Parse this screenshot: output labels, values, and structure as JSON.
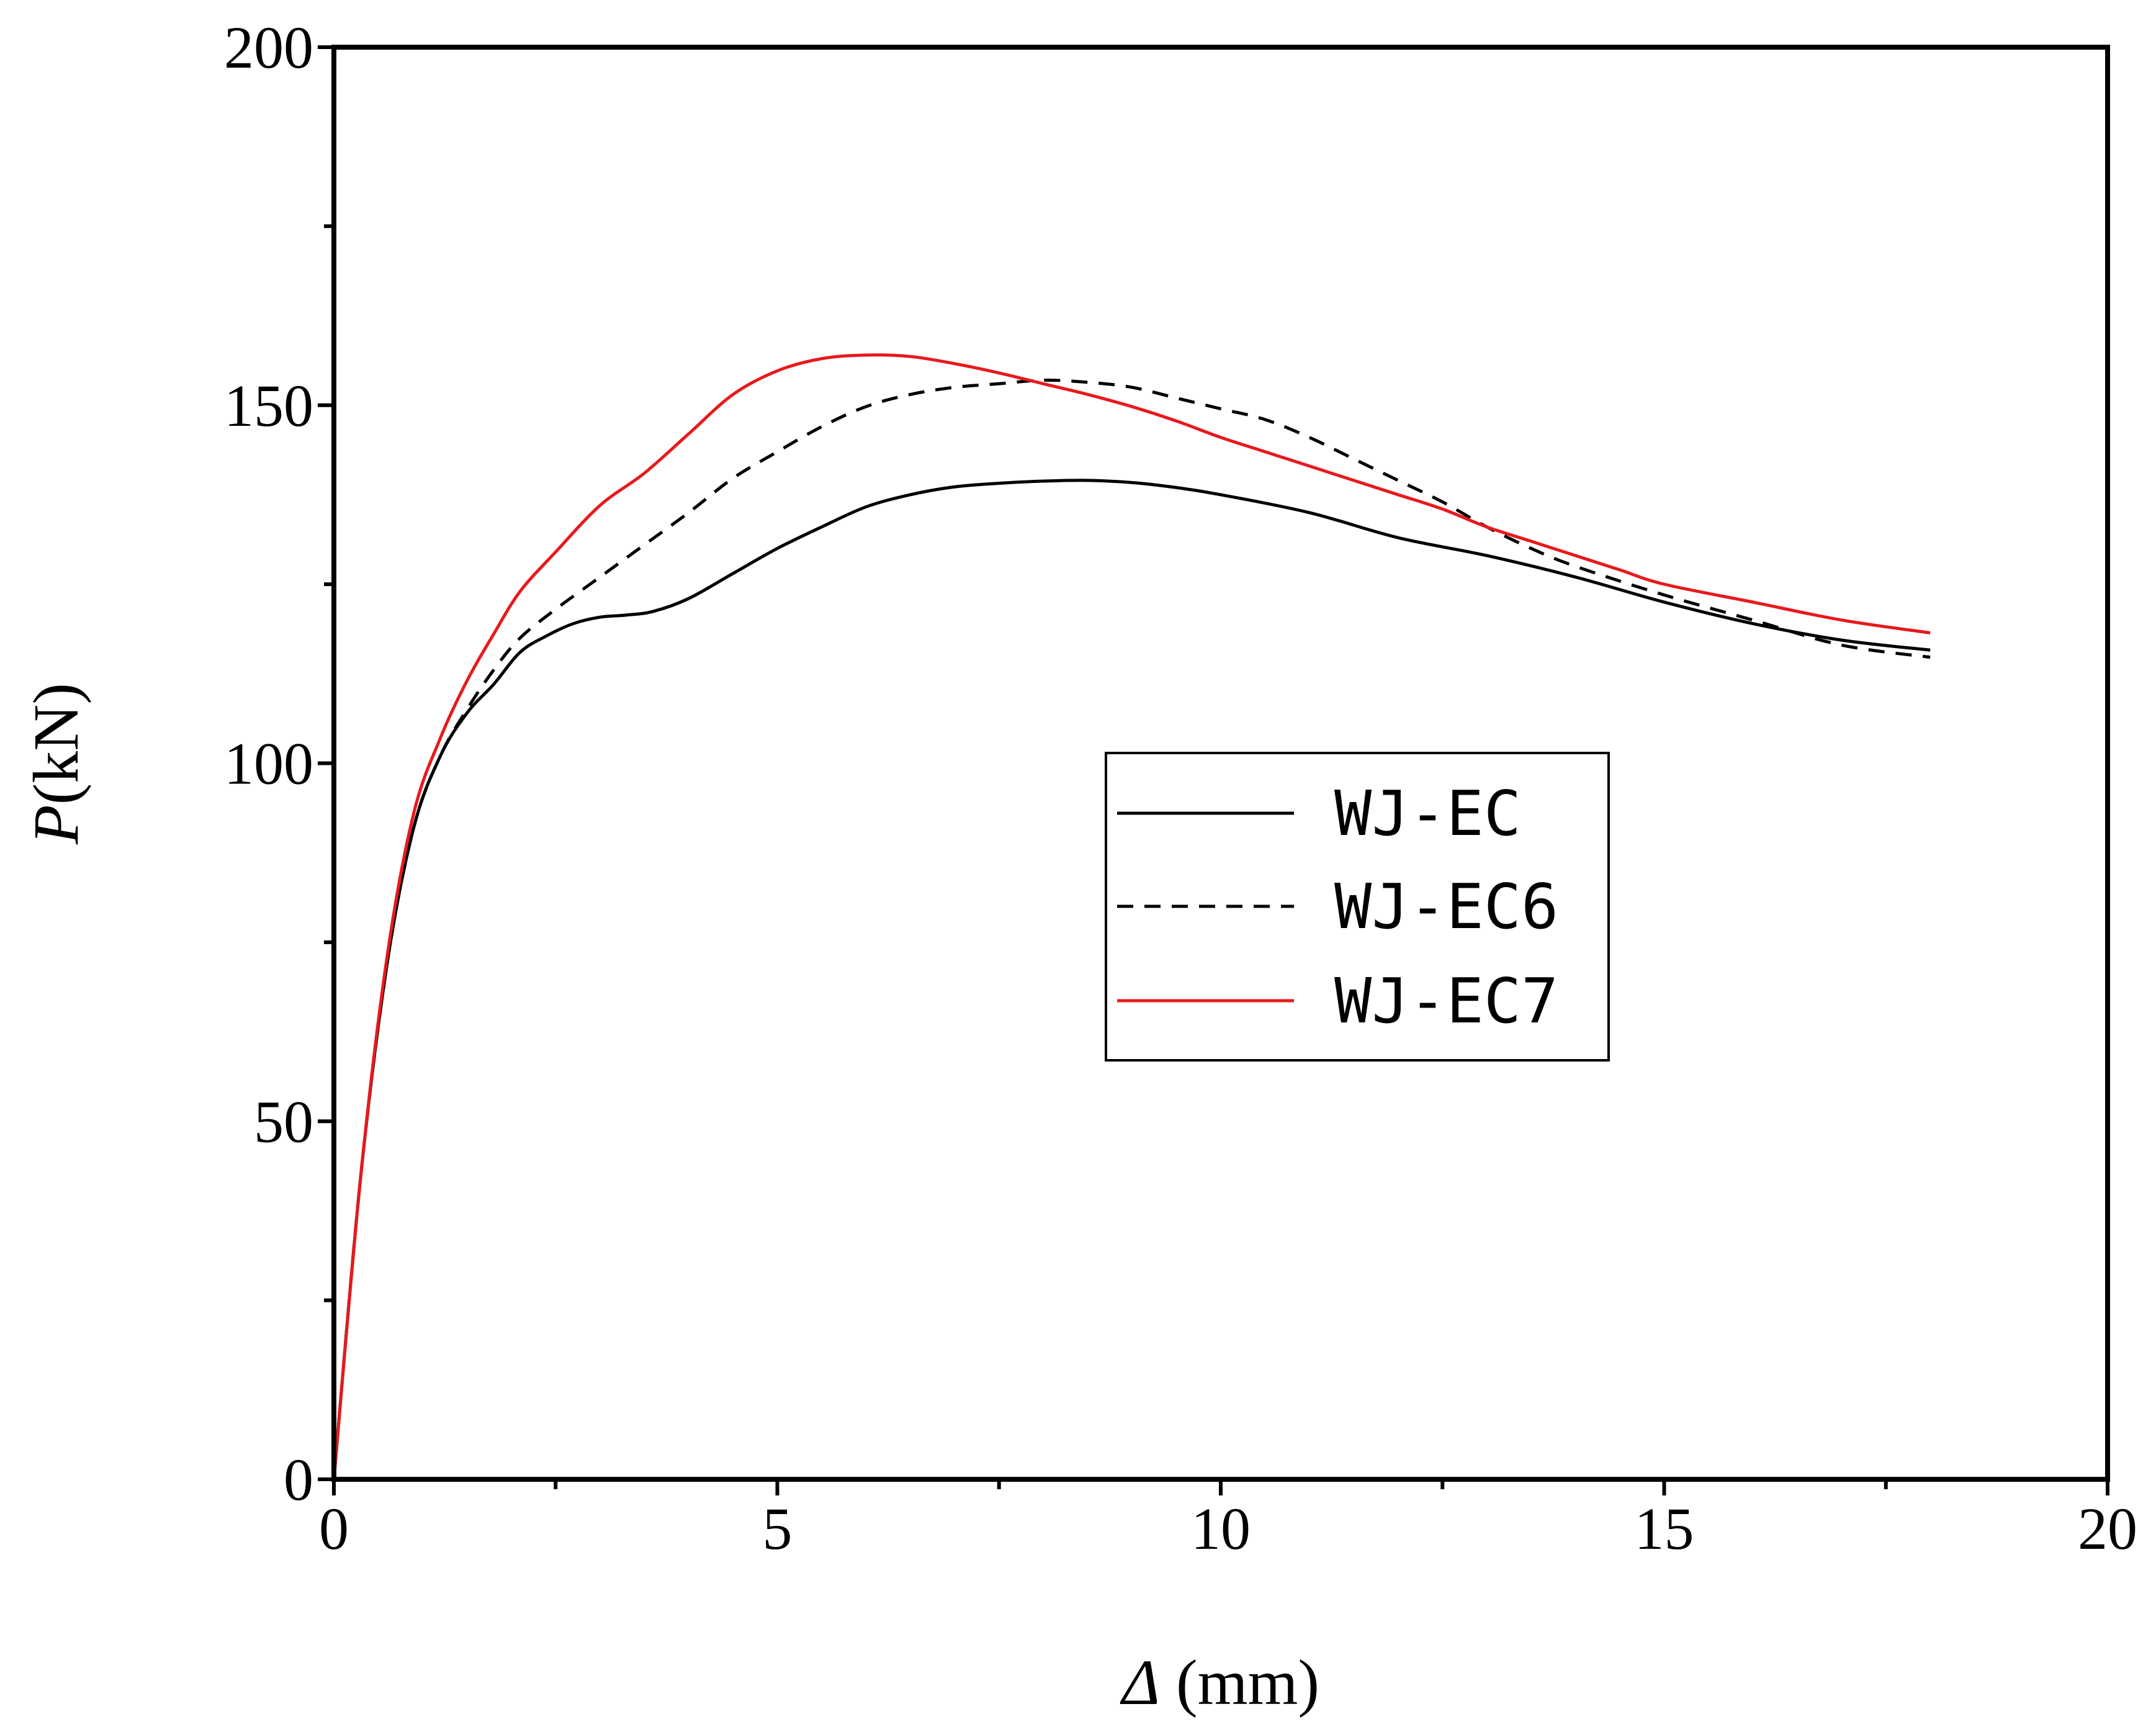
{
  "chart_data": {
    "type": "line",
    "xlabel_symbol": "Δ",
    "xlabel_unit": " (mm)",
    "ylabel_symbol": "P",
    "ylabel_unit": "(kN)",
    "xlim": [
      0,
      20
    ],
    "ylim": [
      0,
      200
    ],
    "x_ticks": [
      "0",
      "5",
      "10",
      "15",
      "20"
    ],
    "y_ticks": [
      "0",
      "50",
      "100",
      "150",
      "200"
    ],
    "grid": false,
    "legend_position": "center-right",
    "series": [
      {
        "name": "WJ-EC",
        "color": "#000000",
        "dash": "solid",
        "x": [
          0,
          0.3,
          0.6,
          0.9,
          1.2,
          1.5,
          1.8,
          2.1,
          2.4,
          2.7,
          3.0,
          3.3,
          3.6,
          4.0,
          4.5,
          5.0,
          5.5,
          6.0,
          6.5,
          7.0,
          7.5,
          8.0,
          8.5,
          9.0,
          9.5,
          10.0,
          11.0,
          12.0,
          13.0,
          14.0,
          15.0,
          16.0,
          17.0,
          18.0
        ],
        "y": [
          0,
          42,
          72,
          91,
          101,
          107,
          111,
          115.5,
          117.8,
          119.5,
          120.4,
          120.7,
          121.2,
          123,
          126.5,
          130,
          133,
          135.8,
          137.5,
          138.6,
          139.1,
          139.4,
          139.5,
          139.2,
          138.5,
          137.5,
          135,
          131.5,
          129,
          126,
          122.5,
          119.5,
          117.2,
          115.8
        ]
      },
      {
        "name": "WJ-EC6",
        "color": "#000000",
        "dash": "dashed",
        "x": [
          0,
          0.3,
          0.6,
          0.9,
          1.2,
          1.5,
          1.8,
          2.1,
          2.5,
          3.0,
          3.5,
          4.0,
          4.5,
          5.0,
          5.5,
          6.0,
          6.5,
          7.0,
          7.5,
          8.0,
          8.5,
          9.0,
          9.5,
          10.0,
          10.5,
          11.0,
          11.5,
          12.0,
          12.5,
          13.0,
          13.5,
          14.0,
          15.0,
          16.0,
          17.0,
          18.0
        ],
        "y": [
          0,
          42,
          72,
          91,
          101,
          107.5,
          113,
          117.5,
          121.5,
          126,
          130.5,
          135,
          139.8,
          143.5,
          147,
          149.8,
          151.5,
          152.5,
          153,
          153.5,
          153.2,
          152.5,
          151,
          149.5,
          148,
          145.5,
          142.5,
          139.5,
          136.5,
          133,
          130,
          127.5,
          123.5,
          120,
          116.5,
          114.8
        ]
      },
      {
        "name": "WJ-EC7",
        "color": "#e8191c",
        "dash": "solid",
        "x": [
          0,
          0.3,
          0.6,
          0.9,
          1.2,
          1.5,
          1.8,
          2.1,
          2.5,
          3.0,
          3.5,
          4.0,
          4.5,
          5.0,
          5.5,
          6.0,
          6.5,
          7.0,
          7.5,
          8.0,
          8.5,
          9.0,
          9.5,
          10.0,
          10.5,
          11.0,
          11.5,
          12.0,
          12.5,
          13.0,
          13.5,
          14.0,
          14.5,
          15.0,
          16.0,
          17.0,
          18.0
        ],
        "y": [
          0,
          42,
          73,
          93,
          103.5,
          111.5,
          118,
          124,
          129.5,
          136,
          140.5,
          146,
          151.5,
          154.8,
          156.5,
          157,
          156.8,
          155.8,
          154.5,
          153,
          151.5,
          149.8,
          147.8,
          145.5,
          143.5,
          141.5,
          139.5,
          137.5,
          135.5,
          133,
          131,
          129,
          127,
          125,
          122.5,
          120,
          118.2
        ]
      }
    ]
  }
}
